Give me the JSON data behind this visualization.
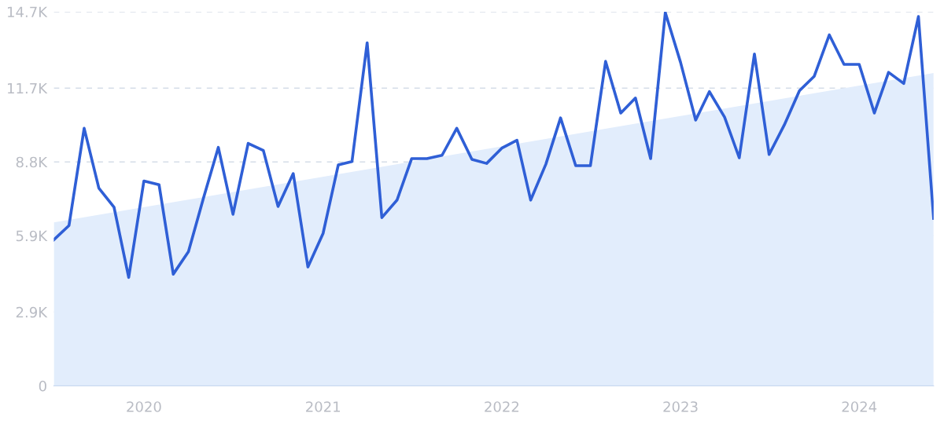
{
  "chart_data": {
    "type": "line",
    "x": [
      "2019-07",
      "2019-08",
      "2019-09",
      "2019-10",
      "2019-11",
      "2019-12",
      "2020-01",
      "2020-02",
      "2020-03",
      "2020-04",
      "2020-05",
      "2020-06",
      "2020-07",
      "2020-08",
      "2020-09",
      "2020-10",
      "2020-11",
      "2020-12",
      "2021-01",
      "2021-02",
      "2021-03",
      "2021-04",
      "2021-05",
      "2021-06",
      "2021-07",
      "2021-08",
      "2021-09",
      "2021-10",
      "2021-11",
      "2021-12",
      "2022-01",
      "2022-02",
      "2022-03",
      "2022-04",
      "2022-05",
      "2022-06",
      "2022-07",
      "2022-08",
      "2022-09",
      "2022-10",
      "2022-11",
      "2022-12",
      "2023-01",
      "2023-02",
      "2023-03",
      "2023-04",
      "2023-05",
      "2023-06",
      "2023-07",
      "2023-08",
      "2023-09",
      "2023-10",
      "2023-11",
      "2023-12",
      "2024-01",
      "2024-02",
      "2024-03",
      "2024-04",
      "2024-05",
      "2024-06"
    ],
    "series": [
      {
        "type": "area",
        "color": "#e2edfc",
        "x": [
          "2019-07",
          "2024-06"
        ],
        "values": [
          6420,
          12290
        ]
      },
      {
        "color": "#2f5fd6",
        "values": [
          5740,
          6300,
          10120,
          7770,
          7020,
          4260,
          8050,
          7900,
          4390,
          5270,
          7330,
          9370,
          6740,
          9530,
          9250,
          7050,
          8340,
          4670,
          5990,
          8680,
          8810,
          13480,
          6610,
          7300,
          8930,
          8930,
          9060,
          10120,
          8900,
          8740,
          9340,
          9650,
          7300,
          8710,
          10530,
          8650,
          8650,
          12750,
          10720,
          11310,
          8930,
          14670,
          12720,
          10440,
          11560,
          10560,
          8960,
          13040,
          9090,
          10250,
          11600,
          12160,
          13790,
          12630,
          12630,
          10720,
          12320,
          11880,
          14510,
          6580
        ]
      }
    ],
    "xlim": [
      "2019-07",
      "2024-06"
    ],
    "xticks": [
      {
        "value": "2020-01",
        "label": "2020"
      },
      {
        "value": "2021-01",
        "label": "2021"
      },
      {
        "value": "2022-01",
        "label": "2022"
      },
      {
        "value": "2023-01",
        "label": "2023"
      },
      {
        "value": "2024-01",
        "label": "2024"
      }
    ],
    "ylim": [
      0,
      14700
    ],
    "yticks": [
      0,
      {
        "value": 2900,
        "label": "2.9K"
      },
      {
        "value": 5900,
        "label": "5.9K"
      },
      {
        "value": 8800,
        "label": "8.8K"
      },
      {
        "value": 11700,
        "label": "11.7K"
      },
      {
        "value": 14700,
        "label": "14.7K"
      }
    ],
    "grid": "y",
    "line_style": "solid"
  }
}
